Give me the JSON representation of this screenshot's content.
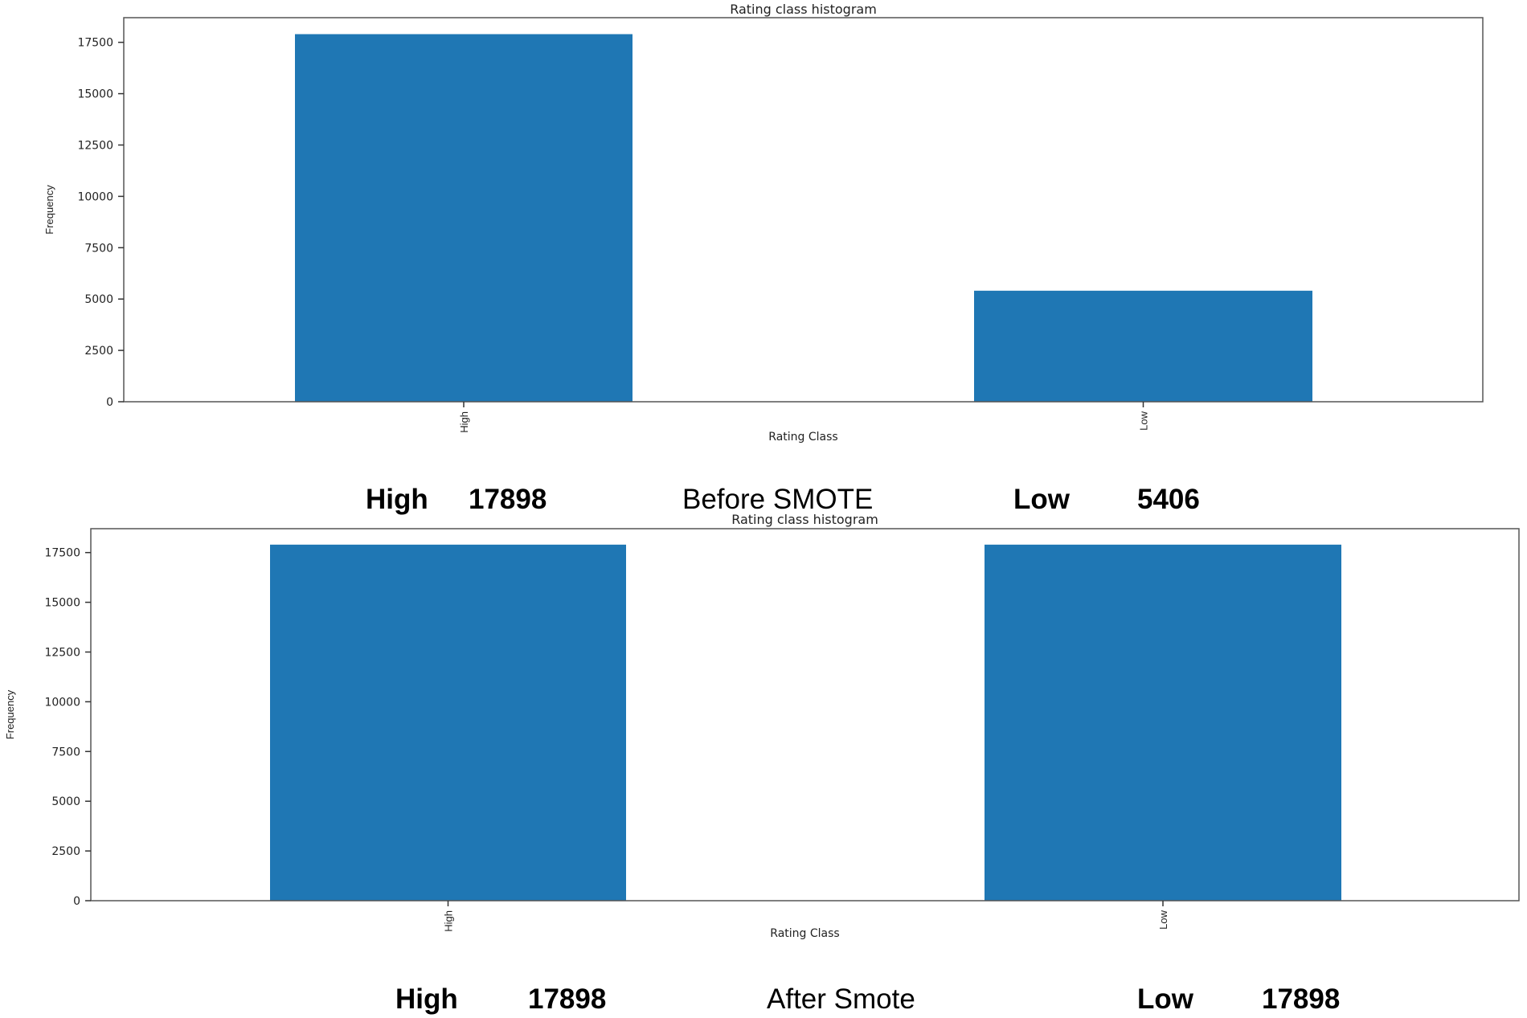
{
  "chart_data": [
    {
      "type": "bar",
      "title": "Rating class histogram",
      "xlabel": "Rating Class",
      "ylabel": "Frequency",
      "categories": [
        "High",
        "Low"
      ],
      "values": [
        17898,
        5406
      ],
      "ylim": [
        0,
        18700
      ],
      "yticks": [
        0,
        2500,
        5000,
        7500,
        10000,
        12500,
        15000,
        17500
      ],
      "bar_color": "#1f77b4",
      "grid": false
    },
    {
      "type": "bar",
      "title": "Rating class histogram",
      "xlabel": "Rating Class",
      "ylabel": "Frequency",
      "categories": [
        "High",
        "Low"
      ],
      "values": [
        17898,
        17898
      ],
      "ylim": [
        0,
        18700
      ],
      "yticks": [
        0,
        2500,
        5000,
        7500,
        10000,
        12500,
        15000,
        17500
      ],
      "bar_color": "#1f77b4",
      "grid": false
    }
  ],
  "captions": {
    "before": {
      "high_label": "High",
      "high_value": "17898",
      "title": "Before SMOTE",
      "low_label": "Low",
      "low_value": "5406"
    },
    "after": {
      "high_label": "High",
      "high_value": "17898",
      "title": "After Smote",
      "low_label": "Low",
      "low_value": "17898"
    }
  }
}
